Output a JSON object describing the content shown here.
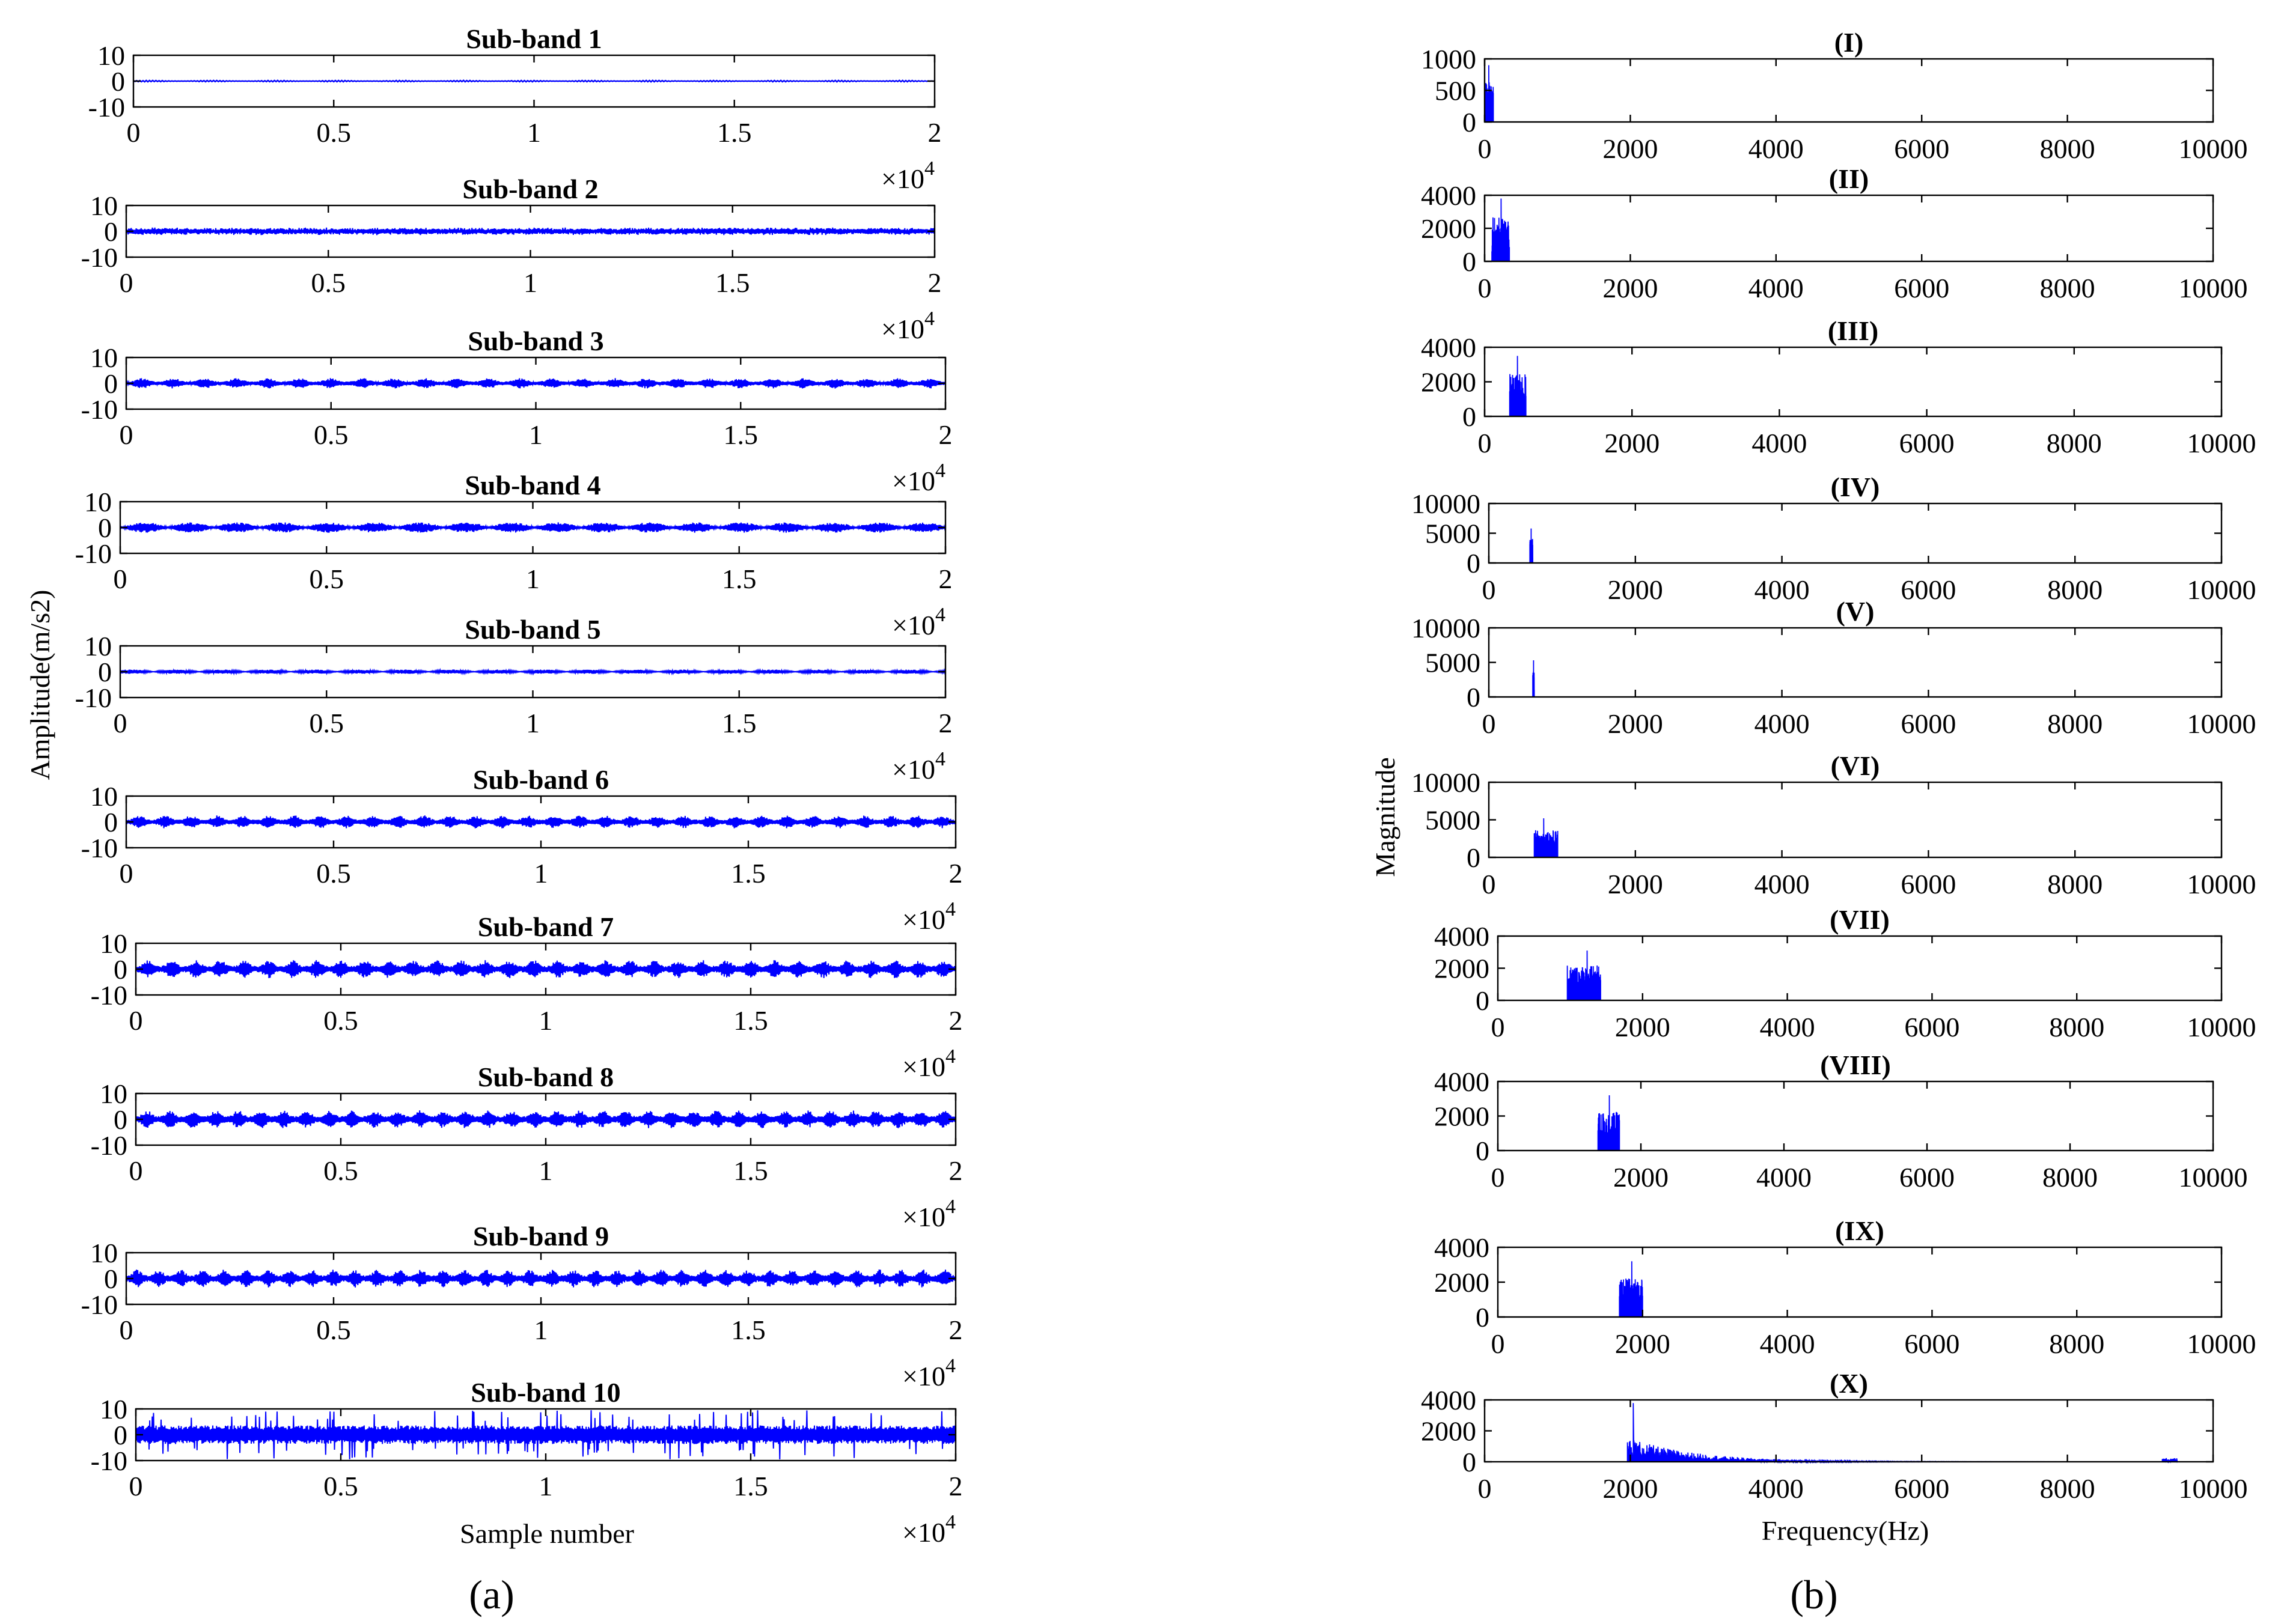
{
  "figure": {
    "caption_a": "(a)",
    "caption_b": "(b)"
  },
  "colors": {
    "signal": "#0000ff",
    "axes": "#000000"
  },
  "chart_data": [
    {
      "panel": "a",
      "type": "line",
      "xlabel": "Sample number",
      "ylabel": "Amplitude(m/s2)",
      "xlim": [
        0,
        20000
      ],
      "ylim": [
        -10,
        10
      ],
      "x_tick_labels": [
        "0",
        "0.5",
        "1",
        "1.5",
        "2"
      ],
      "y_tick_labels": [
        "10",
        "0",
        "-10"
      ],
      "x_exponent": "×10",
      "x_exponent_power": "4",
      "subplots": [
        {
          "title": "Sub-band 1",
          "amplitude": 0.3,
          "style": "smooth"
        },
        {
          "title": "Sub-band 2",
          "amplitude": 1.5,
          "style": "noisy"
        },
        {
          "title": "Sub-band 3",
          "amplitude": 2.0,
          "style": "bursty"
        },
        {
          "title": "Sub-band 4",
          "amplitude": 2.0,
          "style": "envelope"
        },
        {
          "title": "Sub-band 5",
          "amplitude": 0.8,
          "style": "envelope"
        },
        {
          "title": "Sub-band 6",
          "amplitude": 2.5,
          "style": "bursty"
        },
        {
          "title": "Sub-band 7",
          "amplitude": 3.5,
          "style": "bursty"
        },
        {
          "title": "Sub-band 8",
          "amplitude": 3.5,
          "style": "bursty"
        },
        {
          "title": "Sub-band 9",
          "amplitude": 3.5,
          "style": "bursty"
        },
        {
          "title": "Sub-band 10",
          "amplitude": 6.0,
          "style": "spiky"
        }
      ]
    },
    {
      "panel": "b",
      "type": "line",
      "xlabel": "Frequency(Hz)",
      "ylabel": "Magnitude",
      "xlim": [
        0,
        10000
      ],
      "x_tick_labels": [
        "0",
        "2000",
        "4000",
        "6000",
        "8000",
        "10000"
      ],
      "subplots": [
        {
          "title": "(I)",
          "ylim": [
            0,
            1000
          ],
          "y_tick_labels": [
            "1000",
            "500",
            "0"
          ],
          "band_hz": [
            0,
            120
          ],
          "peak": 900
        },
        {
          "title": "(II)",
          "ylim": [
            0,
            4000
          ],
          "y_tick_labels": [
            "4000",
            "2000",
            "0"
          ],
          "band_hz": [
            100,
            340
          ],
          "peak": 3800
        },
        {
          "title": "(III)",
          "ylim": [
            0,
            4000
          ],
          "y_tick_labels": [
            "4000",
            "2000",
            "0"
          ],
          "band_hz": [
            340,
            560
          ],
          "peak": 3500
        },
        {
          "title": "(IV)",
          "ylim": [
            0,
            10000
          ],
          "y_tick_labels": [
            "10000",
            "5000",
            "0"
          ],
          "band_hz": [
            560,
            600
          ],
          "peak": 5800
        },
        {
          "title": "(V)",
          "ylim": [
            0,
            10000
          ],
          "y_tick_labels": [
            "10000",
            "5000",
            "0"
          ],
          "band_hz": [
            600,
            620
          ],
          "peak": 5300
        },
        {
          "title": "(VI)",
          "ylim": [
            0,
            10000
          ],
          "y_tick_labels": [
            "10000",
            "5000",
            "0"
          ],
          "band_hz": [
            620,
            940
          ],
          "peak": 5200
        },
        {
          "title": "(VII)",
          "ylim": [
            0,
            4000
          ],
          "y_tick_labels": [
            "4000",
            "2000",
            "0"
          ],
          "band_hz": [
            960,
            1420
          ],
          "peak": 3100
        },
        {
          "title": "(VIII)",
          "ylim": [
            0,
            4000
          ],
          "y_tick_labels": [
            "4000",
            "2000",
            "0"
          ],
          "band_hz": [
            1400,
            1700
          ],
          "peak": 3200
        },
        {
          "title": "(IX)",
          "ylim": [
            0,
            4000
          ],
          "y_tick_labels": [
            "4000",
            "2000",
            "0"
          ],
          "band_hz": [
            1680,
            2000
          ],
          "peak": 3200
        },
        {
          "title": "(X)",
          "ylim": [
            0,
            4000
          ],
          "y_tick_labels": [
            "4000",
            "2000",
            "0"
          ],
          "band_hz": [
            1960,
            10000
          ],
          "peak": 3800
        }
      ]
    }
  ]
}
